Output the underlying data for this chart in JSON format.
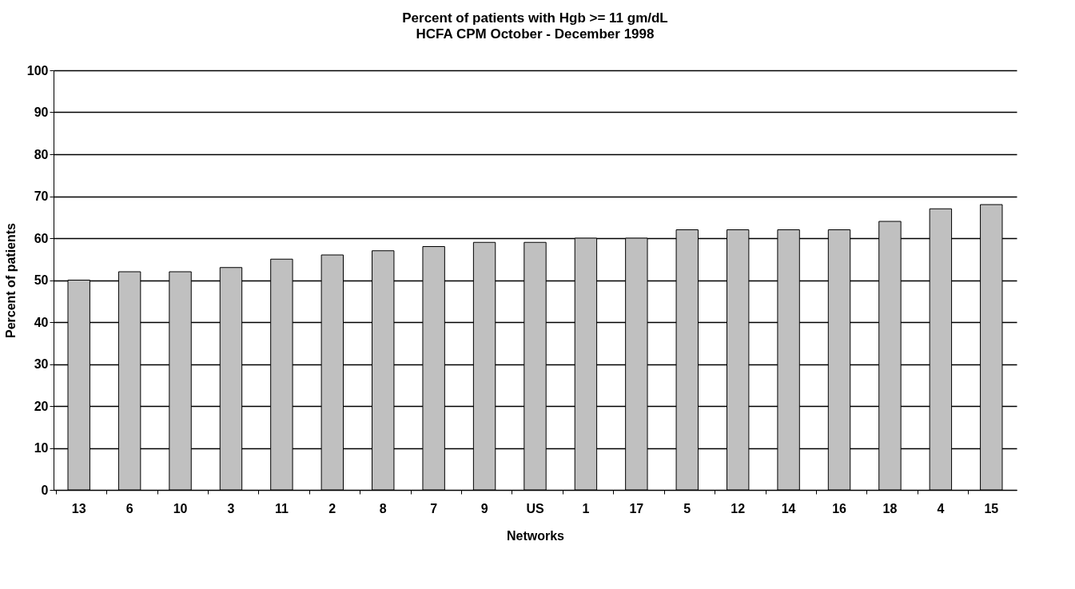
{
  "chart_data": {
    "type": "bar",
    "title": "Percent of patients with Hgb >= 11 gm/dL",
    "subtitle": "HCFA CPM October - December 1998",
    "xlabel": "Networks",
    "ylabel": "Percent of patients",
    "categories": [
      "13",
      "6",
      "10",
      "3",
      "11",
      "2",
      "8",
      "7",
      "9",
      "US",
      "1",
      "17",
      "5",
      "12",
      "14",
      "16",
      "18",
      "4",
      "15"
    ],
    "values": [
      50,
      52,
      52,
      53,
      55,
      56,
      57,
      58,
      59,
      59,
      60,
      60,
      62,
      62,
      62,
      62,
      64,
      67,
      68
    ],
    "color": "#c0c0c0",
    "ylim": [
      0,
      100
    ],
    "yticks": [
      0,
      10,
      20,
      30,
      40,
      50,
      60,
      70,
      80,
      90,
      100
    ],
    "grid": "y"
  }
}
